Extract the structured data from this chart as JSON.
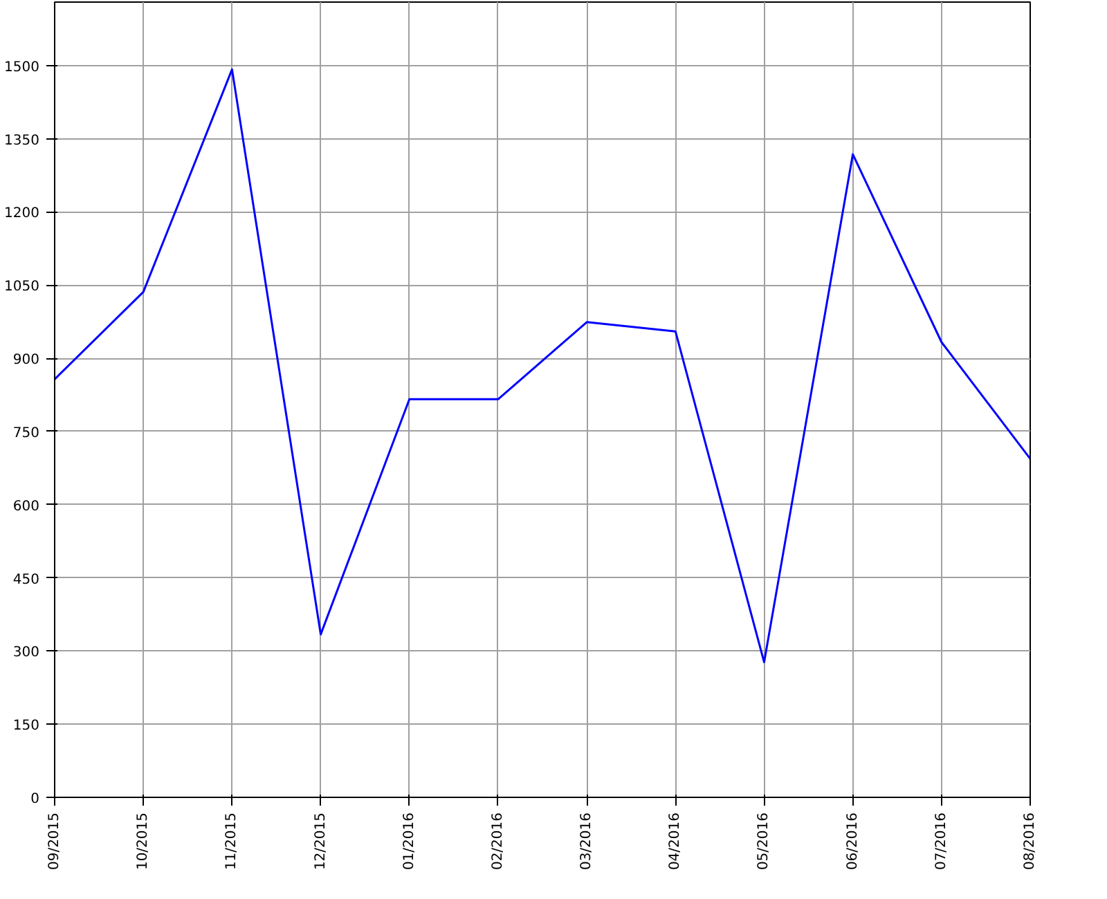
{
  "chart_data": {
    "type": "line",
    "categories": [
      "09/2015",
      "10/2015",
      "11/2015",
      "12/2015",
      "01/2016",
      "02/2016",
      "03/2016",
      "04/2016",
      "05/2016",
      "06/2016",
      "07/2016",
      "08/2016"
    ],
    "series": [
      {
        "color": "#0000ff",
        "values": [
          857,
          1036,
          1492,
          334,
          816,
          816,
          974,
          955,
          277,
          1318,
          933,
          694
        ]
      }
    ],
    "ylim": [
      0,
      1630
    ],
    "yticks": [
      0,
      150,
      300,
      450,
      600,
      750,
      900,
      1050,
      1200,
      1350,
      1500
    ],
    "grid": true,
    "marker": "none",
    "line_style": "solid"
  }
}
